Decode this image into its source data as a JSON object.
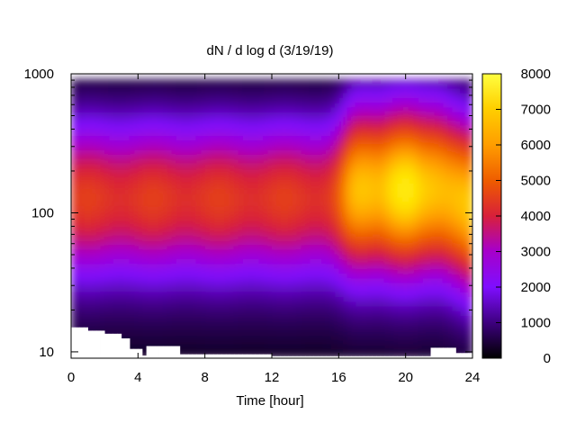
{
  "chart_data": {
    "type": "heatmap",
    "title": "dN / d log d (3/19/19)",
    "xlabel": "Time [hour]",
    "ylabel": "",
    "x_ticks": [
      0,
      4,
      8,
      12,
      16,
      20,
      24
    ],
    "xlim": [
      0,
      24
    ],
    "y_scale": "log",
    "y_ticks": [
      10,
      100,
      1000
    ],
    "ylim": [
      9,
      1000
    ],
    "colorbar": {
      "ticks": [
        0,
        1000,
        2000,
        3000,
        4000,
        5000,
        6000,
        7000,
        8000
      ],
      "range": [
        0,
        8000
      ],
      "palette": [
        "#000000",
        "#3b007a",
        "#7f0eff",
        "#a800c8",
        "#d8203a",
        "#ee5a00",
        "#ff9d00",
        "#ffe400",
        "#ffff40"
      ]
    },
    "bands": [
      {
        "t_start": 0,
        "t_end": 16,
        "peak_diameter": 130,
        "peak_value": 4300,
        "lower_cutoff_diameter": 17
      },
      {
        "t_start": 16,
        "t_end": 24,
        "peak_diameter": 150,
        "peak_value": 6500,
        "lower_cutoff_diameter": 10
      }
    ],
    "colors": {
      "no_data": "#ffffff"
    }
  }
}
